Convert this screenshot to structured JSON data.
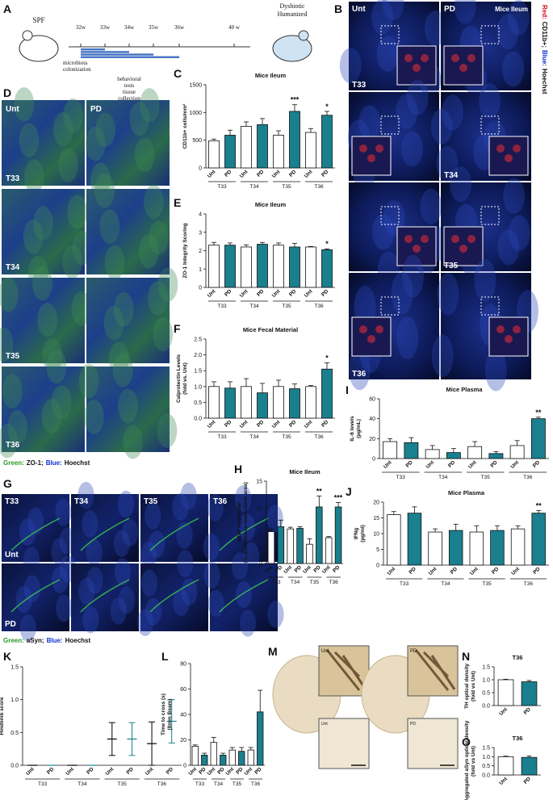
{
  "chart_data": [
    {
      "panel": "C",
      "type": "bar",
      "title": "Mice Ileum",
      "ylabel": [
        "CD11b+ cells/mm²"
      ],
      "categories": [
        "Unt",
        "PD",
        "Unt",
        "PD",
        "Unt",
        "PD",
        "Unt",
        "PD"
      ],
      "groups": [
        "T33",
        "T34",
        "T35",
        "T36"
      ],
      "values": [
        490,
        590,
        750,
        780,
        590,
        1020,
        640,
        950
      ],
      "errors": [
        30,
        90,
        80,
        110,
        80,
        120,
        70,
        70
      ],
      "significance": [
        null,
        null,
        null,
        null,
        null,
        "***",
        null,
        "*"
      ],
      "colors": [
        "#ffffff",
        "#1a7f8e"
      ],
      "ylim": [
        0,
        1500
      ],
      "yticks": [
        0,
        500,
        1000,
        1500
      ]
    },
    {
      "panel": "E",
      "type": "bar",
      "title": "Mice Ileum",
      "ylabel": [
        "ZO-1 Integrity Scoring"
      ],
      "categories": [
        "Unt",
        "PD",
        "Unt",
        "PD",
        "Unt",
        "PD",
        "Unt",
        "PD"
      ],
      "groups": [
        "T33",
        "T34",
        "T35",
        "T36"
      ],
      "values": [
        2.3,
        2.3,
        2.2,
        2.35,
        2.3,
        2.2,
        2.2,
        2.05
      ],
      "errors": [
        0.15,
        0.12,
        0.12,
        0.1,
        0.12,
        0.2,
        0.03,
        0.05
      ],
      "significance": [
        null,
        null,
        null,
        null,
        null,
        null,
        null,
        "*"
      ],
      "colors": [
        "#ffffff",
        "#1a7f8e"
      ],
      "ylim": [
        0,
        4
      ],
      "yticks": [
        0,
        1,
        2,
        3,
        4
      ]
    },
    {
      "panel": "F",
      "type": "bar",
      "title": "Mice Fecal Material",
      "ylabel": [
        "Calprotectin Levels",
        "(fold vs. Unt)"
      ],
      "categories": [
        "Unt",
        "PD",
        "Unt",
        "PD",
        "Unt",
        "PD",
        "Unt",
        "PD"
      ],
      "groups": [
        "T33",
        "T34",
        "T35",
        "T36"
      ],
      "values": [
        1.0,
        0.95,
        1.0,
        0.8,
        1.0,
        0.93,
        1.0,
        1.55
      ],
      "errors": [
        0.15,
        0.2,
        0.25,
        0.3,
        0.2,
        0.15,
        0.03,
        0.2
      ],
      "significance": [
        null,
        null,
        null,
        null,
        null,
        null,
        null,
        "*"
      ],
      "colors": [
        "#ffffff",
        "#1a7f8e"
      ],
      "ylim": [
        0,
        2.5
      ],
      "yticks": [
        {
          "value": 0,
          "label": "0.0"
        },
        {
          "value": 0.5,
          "label": "0.5"
        },
        {
          "value": 1,
          "label": "1.0"
        },
        {
          "value": 1.5,
          "label": "1.5"
        },
        {
          "value": 2,
          "label": "2.0"
        },
        {
          "value": 2.5,
          "label": "2.5"
        }
      ]
    },
    {
      "panel": "I",
      "type": "bar",
      "title": "Mice Plasma",
      "ylabel": [
        "IL-6 levels",
        "(pg/mL)"
      ],
      "categories": [
        "Unt",
        "PD",
        "Unt",
        "PD",
        "Unt",
        "PD",
        "Unt",
        "PD"
      ],
      "groups": [
        "T33",
        "T34",
        "T35",
        "T36"
      ],
      "values": [
        17,
        16,
        9,
        6,
        12,
        5,
        13,
        40
      ],
      "errors": [
        3,
        5,
        4,
        4,
        5,
        2,
        5,
        1.5
      ],
      "significance": [
        null,
        null,
        null,
        null,
        null,
        null,
        null,
        "**"
      ],
      "colors": [
        "#ffffff",
        "#1a7f8e"
      ],
      "ylim": [
        0,
        60
      ],
      "yticks": [
        0,
        20,
        40,
        60
      ]
    },
    {
      "panel": "H",
      "type": "bar",
      "title": "Mice Ileum",
      "ylabel": [
        "aSyn aggregate",
        "(% submucosa-muscularis area)"
      ],
      "categories": [
        "Unt",
        "PD",
        "Unt",
        "PD",
        "Unt",
        "PD",
        "Unt",
        "PD"
      ],
      "groups": [
        "T33",
        "T34",
        "T35",
        "T36"
      ],
      "values": [
        5.8,
        6.7,
        6.3,
        6.4,
        3.5,
        10.3,
        4.7,
        10.3
      ],
      "errors": [
        0.5,
        1.2,
        0.3,
        0.3,
        1.0,
        2.0,
        0.2,
        0.8
      ],
      "significance": [
        null,
        null,
        null,
        null,
        null,
        "**",
        null,
        "***"
      ],
      "colors": [
        "#ffffff",
        "#1a7f8e"
      ],
      "ylim": [
        0,
        15
      ],
      "yticks": [
        0,
        5,
        10,
        15
      ]
    },
    {
      "panel": "J",
      "type": "bar",
      "title": "Mice Plasma",
      "ylabel": [
        "IFNg",
        "(pg/ml)"
      ],
      "categories": [
        "Unt",
        "PD",
        "Unt",
        "PD",
        "Unt",
        "PD",
        "Unt",
        "PD"
      ],
      "groups": [
        "T33",
        "T34",
        "T35",
        "T36"
      ],
      "values": [
        16,
        16.5,
        10.5,
        11,
        10.5,
        11,
        11.5,
        16.5
      ],
      "errors": [
        1,
        2,
        1,
        2,
        2,
        1.5,
        1,
        0.8
      ],
      "significance": [
        null,
        null,
        null,
        null,
        null,
        null,
        null,
        "**"
      ],
      "colors": [
        "#ffffff",
        "#1a7f8e"
      ],
      "ylim": [
        0,
        20
      ],
      "yticks": [
        0,
        5,
        10,
        15,
        20
      ]
    },
    {
      "panel": "K",
      "type": "dot",
      "ylabel": [
        "Hindlimb score"
      ],
      "categories": [
        "Unt",
        "PD",
        "Unt",
        "PD",
        "Unt",
        "PD",
        "Unt",
        "PD"
      ],
      "groups": [
        "T33",
        "T34",
        "T35",
        "T36"
      ],
      "values": [
        0,
        0,
        0,
        0,
        0.4,
        0.4,
        0.33,
        0.67
      ],
      "errors": [
        0,
        0,
        0,
        0,
        0.25,
        0.25,
        0.33,
        0.33
      ],
      "colors": [
        "#000000",
        "#1a7f8e"
      ],
      "ylim": [
        0,
        1.5
      ],
      "yticks": [
        {
          "value": 0,
          "label": "0.0"
        },
        {
          "value": 0.5,
          "label": "0.5"
        },
        {
          "value": 1,
          "label": "1.0"
        },
        {
          "value": 1.5,
          "label": "1.5"
        }
      ]
    },
    {
      "panel": "L",
      "type": "bar",
      "ylabel": [
        "Time to cross (s)",
        "(8mm Beam)"
      ],
      "categories": [
        "Unt",
        "PD",
        "Unt",
        "PD",
        "Unt",
        "PD",
        "Unt",
        "PD"
      ],
      "groups": [
        "T33",
        "T34",
        "T35",
        "T36"
      ],
      "values": [
        15,
        8,
        18,
        8,
        12,
        11,
        12,
        42
      ],
      "errors": [
        1,
        1.5,
        4,
        1.5,
        2,
        3,
        2,
        17
      ],
      "colors": [
        "#ffffff",
        "#1a7f8e"
      ],
      "ylim": [
        0,
        80
      ],
      "yticks": [
        0,
        20,
        40,
        60,
        80
      ]
    },
    {
      "panel": "N",
      "type": "bar",
      "title": "T36",
      "ylabel": [
        "TH optical density",
        "(fold vs Unt)"
      ],
      "categories": [
        "Unt",
        "PD"
      ],
      "values": [
        1.0,
        0.92
      ],
      "errors": [
        0.02,
        0.05
      ],
      "colors": [
        "#ffffff",
        "#1a7f8e"
      ],
      "ylim": [
        0,
        1.5
      ],
      "yticks": [
        {
          "value": 0,
          "label": "0.0"
        },
        {
          "value": 0.5,
          "label": "0.5"
        },
        {
          "value": 1,
          "label": "1.0"
        },
        {
          "value": 1.5,
          "label": "1.5"
        }
      ]
    },
    {
      "panel": "O",
      "type": "bar",
      "title": "T36",
      "ylabel": [
        "Aggregated aSyn optical density",
        "(fold vs Unt)"
      ],
      "categories": [
        "Unt",
        "PD"
      ],
      "values": [
        1.0,
        0.96
      ],
      "errors": [
        0.03,
        0.08
      ],
      "colors": [
        "#ffffff",
        "#1a7f8e"
      ],
      "ylim": [
        0,
        1.5
      ],
      "yticks": [
        {
          "value": 0,
          "label": "0.0"
        },
        {
          "value": 0.5,
          "label": "0.5"
        },
        {
          "value": 1,
          "label": "1.0"
        },
        {
          "value": 1.5,
          "label": "1.5"
        }
      ]
    }
  ],
  "figure": {
    "timeline": {
      "panel": "A",
      "start": "SPF",
      "weeks": [
        "32w",
        "33w",
        "34w",
        "35w",
        "36w",
        "40 w"
      ],
      "end": [
        "Dysbiotic",
        "Humanized"
      ],
      "colonization": [
        "microbiota",
        "colonization"
      ],
      "behavior": [
        "behavioral",
        "tests",
        "tissue",
        "collection"
      ]
    },
    "ileum_cd11b": {
      "panel": "B",
      "columns": [
        "Unt",
        "PD"
      ],
      "title": "Mice Ileum",
      "rows": [
        "T33",
        "T34",
        "T35",
        "T36"
      ],
      "legend": [
        "Red:",
        "CD11b+;",
        "Blue:",
        "Hoechst"
      ]
    },
    "ileum_zo1": {
      "panel": "D",
      "columns": [
        "Unt",
        "PD"
      ],
      "rows": [
        "T33",
        "T34",
        "T35",
        "T36"
      ],
      "legend": [
        "Green:",
        "ZO-1;",
        "Blue:",
        "Hoechst"
      ]
    },
    "ileum_asyn": {
      "panel": "G",
      "columns": [
        "T33",
        "T34",
        "T35",
        "T36"
      ],
      "rows": [
        "Unt",
        "PD"
      ],
      "legend": [
        "Green:",
        "aSyn;",
        "Blue:",
        "Hoechst"
      ]
    },
    "brain": {
      "panel": "M",
      "labels": [
        "Unt",
        "PD"
      ],
      "inset_labels": [
        "Unt",
        "PD"
      ]
    }
  }
}
